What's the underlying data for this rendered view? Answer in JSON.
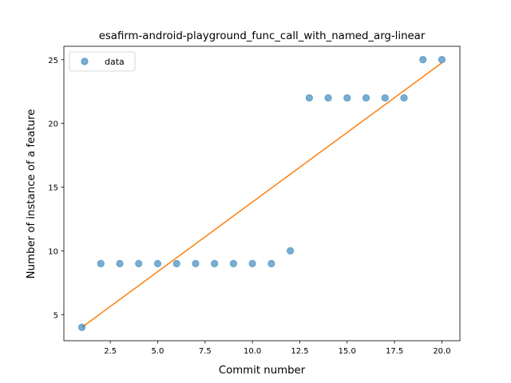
{
  "chart_data": {
    "type": "scatter",
    "title": "esafirm-android-playground_func_call_with_named_arg-linear",
    "xlabel": "Commit number",
    "ylabel": "Number of instance of a feature",
    "xlim": [
      0.05,
      20.95
    ],
    "ylim": [
      2.95,
      26.05
    ],
    "xticks": [
      2.5,
      5.0,
      7.5,
      10.0,
      12.5,
      15.0,
      17.5,
      20.0
    ],
    "xtick_labels": [
      "2.5",
      "5.0",
      "7.5",
      "10.0",
      "12.5",
      "15.0",
      "17.5",
      "20.0"
    ],
    "yticks": [
      5,
      10,
      15,
      20,
      25
    ],
    "ytick_labels": [
      "5",
      "10",
      "15",
      "20",
      "25"
    ],
    "legend_position": "upper-left",
    "series": [
      {
        "name": "data",
        "kind": "scatter",
        "color": "#1f77b4",
        "x": [
          1,
          2,
          3,
          4,
          5,
          6,
          7,
          8,
          9,
          10,
          11,
          12,
          13,
          14,
          15,
          16,
          17,
          18,
          19,
          20
        ],
        "y": [
          4,
          9,
          9,
          9,
          9,
          9,
          9,
          9,
          9,
          9,
          9,
          10,
          22,
          22,
          22,
          22,
          22,
          22,
          25,
          25
        ]
      },
      {
        "kind": "line",
        "color": "#ff7f0e",
        "x": [
          1,
          20
        ],
        "y": [
          4.0,
          24.75
        ]
      }
    ]
  }
}
